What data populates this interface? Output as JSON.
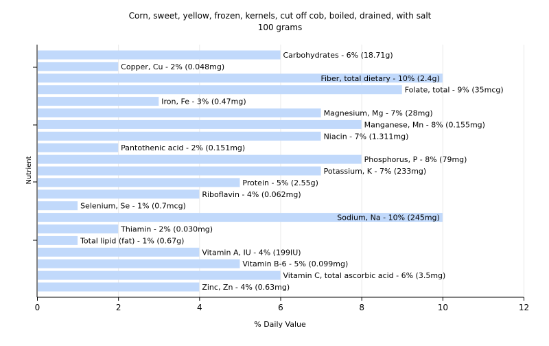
{
  "chart_data": {
    "type": "bar",
    "orientation": "horizontal",
    "title": "Corn, sweet, yellow, frozen, kernels, cut off cob, boiled, drained, with salt",
    "subtitle": "100 grams",
    "xlabel": "% Daily Value",
    "ylabel": "Nutrient",
    "xlim": [
      0,
      12
    ],
    "xticks": [
      "0",
      "2",
      "4",
      "6",
      "8",
      "10",
      "12"
    ],
    "grid": true,
    "bar_color": "#c1d9fb",
    "grid_color": "#e8e8e8",
    "categories": [
      "Carbohydrates",
      "Copper, Cu",
      "Fiber, total dietary",
      "Folate, total",
      "Iron, Fe",
      "Magnesium, Mg",
      "Manganese, Mn",
      "Niacin",
      "Pantothenic acid",
      "Phosphorus, P",
      "Potassium, K",
      "Protein",
      "Riboflavin",
      "Selenium, Se",
      "Sodium, Na",
      "Thiamin",
      "Total lipid (fat)",
      "Vitamin A, IU",
      "Vitamin B-6",
      "Vitamin C, total ascorbic acid",
      "Zinc, Zn"
    ],
    "values": [
      6,
      2,
      10,
      9,
      3,
      7,
      8,
      7,
      2,
      8,
      7,
      5,
      4,
      1,
      10,
      2,
      1,
      4,
      5,
      6,
      4
    ],
    "labels": [
      "Carbohydrates - 6% (18.71g)",
      "Copper, Cu - 2% (0.048mg)",
      "Fiber, total dietary - 10% (2.4g)",
      "Folate, total - 9% (35mcg)",
      "Iron, Fe - 3% (0.47mg)",
      "Magnesium, Mg - 7% (28mg)",
      "Manganese, Mn - 8% (0.155mg)",
      "Niacin - 7% (1.311mg)",
      "Pantothenic acid - 2% (0.151mg)",
      "Phosphorus, P - 8% (79mg)",
      "Potassium, K - 7% (233mg)",
      "Protein - 5% (2.55g)",
      "Riboflavin - 4% (0.062mg)",
      "Selenium, Se - 1% (0.7mcg)",
      "Sodium, Na - 10% (245mg)",
      "Thiamin - 2% (0.030mg)",
      "Total lipid (fat) - 1% (0.67g)",
      "Vitamin A, IU - 4% (199IU)",
      "Vitamin B-6 - 5% (0.099mg)",
      "Vitamin C, total ascorbic acid - 6% (3.5mg)",
      "Zinc, Zn - 4% (0.63mg)"
    ]
  }
}
